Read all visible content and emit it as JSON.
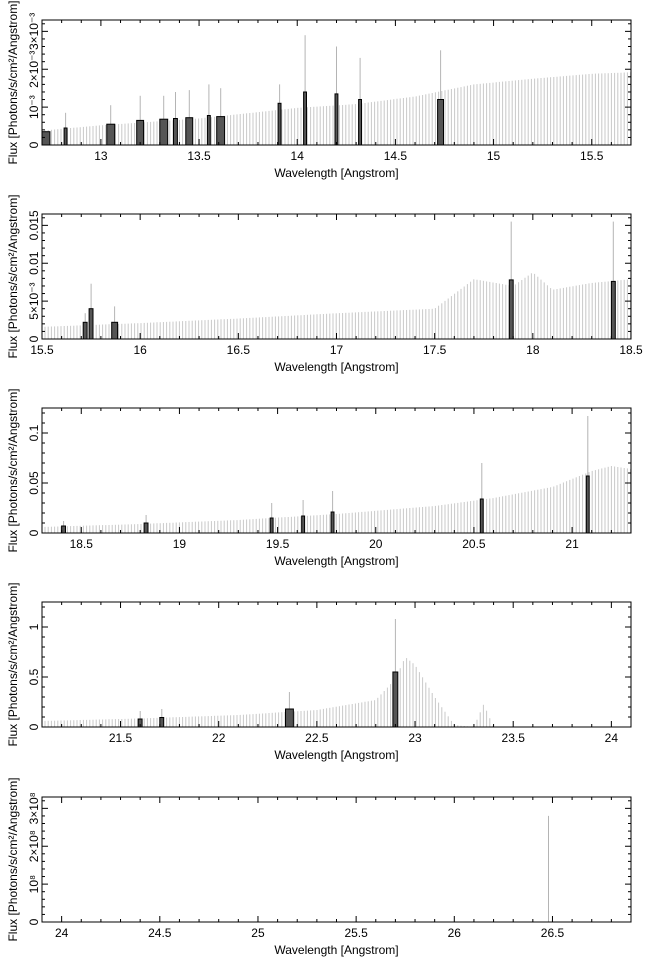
{
  "chart_data": [
    {
      "type": "bar",
      "xlabel": "Wavelength [Angstrom]",
      "ylabel": "Flux [Photons/s/cm²/Angstrom]",
      "xlim": [
        12.7,
        15.7
      ],
      "ylim": [
        0,
        0.0033
      ],
      "x_ticks": [
        {
          "v": 13,
          "label": "13"
        },
        {
          "v": 13.5,
          "label": "13.5"
        },
        {
          "v": 14,
          "label": "14"
        },
        {
          "v": 14.5,
          "label": "14.5"
        },
        {
          "v": 15,
          "label": "15"
        },
        {
          "v": 15.5,
          "label": "15.5"
        }
      ],
      "y_ticks": [
        {
          "v": 0,
          "label": "0"
        },
        {
          "v": 0.001,
          "label": "10⁻³"
        },
        {
          "v": 0.002,
          "label": "2×10⁻³"
        },
        {
          "v": 0.003,
          "label": "3×10⁻³"
        }
      ],
      "model": [
        [
          12.7,
          0.00038
        ],
        [
          13.0,
          0.00052
        ],
        [
          13.5,
          0.0007
        ],
        [
          14.0,
          0.00098
        ],
        [
          14.3,
          0.00108
        ],
        [
          14.6,
          0.00128
        ],
        [
          14.9,
          0.0016
        ],
        [
          15.2,
          0.00175
        ],
        [
          15.5,
          0.00188
        ],
        [
          15.7,
          0.00192
        ]
      ],
      "bars": [
        {
          "x": 12.72,
          "w": 0.04,
          "y": 0.00035,
          "err": 0.0
        },
        {
          "x": 12.82,
          "w": 0.015,
          "y": 0.00045,
          "err": 0.00085
        },
        {
          "x": 13.05,
          "w": 0.04,
          "y": 0.00055,
          "err": 0.00105
        },
        {
          "x": 13.2,
          "w": 0.035,
          "y": 0.00065,
          "err": 0.0013
        },
        {
          "x": 13.32,
          "w": 0.04,
          "y": 0.00068,
          "err": 0.0013
        },
        {
          "x": 13.38,
          "w": 0.02,
          "y": 0.0007,
          "err": 0.0014
        },
        {
          "x": 13.45,
          "w": 0.035,
          "y": 0.00072,
          "err": 0.00145
        },
        {
          "x": 13.55,
          "w": 0.015,
          "y": 0.00078,
          "err": 0.0016
        },
        {
          "x": 13.61,
          "w": 0.04,
          "y": 0.00075,
          "err": 0.0015
        },
        {
          "x": 13.91,
          "w": 0.015,
          "y": 0.0011,
          "err": 0.0016
        },
        {
          "x": 14.04,
          "w": 0.015,
          "y": 0.0014,
          "err": 0.0029
        },
        {
          "x": 14.2,
          "w": 0.015,
          "y": 0.00135,
          "err": 0.0026
        },
        {
          "x": 14.32,
          "w": 0.015,
          "y": 0.0012,
          "err": 0.0023
        },
        {
          "x": 14.73,
          "w": 0.03,
          "y": 0.0012,
          "err": 0.0025
        }
      ]
    },
    {
      "type": "bar",
      "xlabel": "Wavelength [Angstrom]",
      "ylabel": "Flux [Photons/s/cm²/Angstrom]",
      "xlim": [
        15.5,
        18.5
      ],
      "ylim": [
        0,
        0.0165
      ],
      "x_ticks": [
        {
          "v": 15.5,
          "label": "15.5"
        },
        {
          "v": 16,
          "label": "16"
        },
        {
          "v": 16.5,
          "label": "16.5"
        },
        {
          "v": 17,
          "label": "17"
        },
        {
          "v": 17.5,
          "label": "17.5"
        },
        {
          "v": 18,
          "label": "18"
        },
        {
          "v": 18.5,
          "label": "18.5"
        }
      ],
      "y_ticks": [
        {
          "v": 0,
          "label": "0"
        },
        {
          "v": 0.005,
          "label": "5×10⁻³"
        },
        {
          "v": 0.01,
          "label": "0.01"
        },
        {
          "v": 0.015,
          "label": "0.015"
        }
      ],
      "model": [
        [
          15.5,
          0.0016
        ],
        [
          16.0,
          0.0021
        ],
        [
          16.5,
          0.0027
        ],
        [
          17.0,
          0.0034
        ],
        [
          17.5,
          0.004
        ],
        [
          17.7,
          0.0079
        ],
        [
          17.9,
          0.007
        ],
        [
          18.0,
          0.0088
        ],
        [
          18.1,
          0.0065
        ],
        [
          18.3,
          0.0074
        ],
        [
          18.5,
          0.0079
        ]
      ],
      "bars": [
        {
          "x": 15.72,
          "w": 0.02,
          "y": 0.0022,
          "err": 0.0034
        },
        {
          "x": 15.75,
          "w": 0.02,
          "y": 0.004,
          "err": 0.0073
        },
        {
          "x": 15.87,
          "w": 0.03,
          "y": 0.0022,
          "err": 0.0043
        },
        {
          "x": 17.89,
          "w": 0.02,
          "y": 0.0078,
          "err": 0.0155
        },
        {
          "x": 18.41,
          "w": 0.02,
          "y": 0.0076,
          "err": 0.0155
        }
      ]
    },
    {
      "type": "bar",
      "xlabel": "Wavelength [Angstrom]",
      "ylabel": "Flux [Photons/s/cm²/Angstrom]",
      "xlim": [
        18.3,
        21.3
      ],
      "ylim": [
        0,
        0.125
      ],
      "x_ticks": [
        {
          "v": 18.5,
          "label": "18.5"
        },
        {
          "v": 19,
          "label": "19"
        },
        {
          "v": 19.5,
          "label": "19.5"
        },
        {
          "v": 20,
          "label": "20"
        },
        {
          "v": 20.5,
          "label": "20.5"
        },
        {
          "v": 21,
          "label": "21"
        }
      ],
      "y_ticks": [
        {
          "v": 0,
          "label": "0"
        },
        {
          "v": 0.05,
          "label": "0.05"
        },
        {
          "v": 0.1,
          "label": "0.1"
        }
      ],
      "model": [
        [
          18.3,
          0.006
        ],
        [
          18.8,
          0.009
        ],
        [
          19.3,
          0.013
        ],
        [
          19.8,
          0.019
        ],
        [
          20.3,
          0.027
        ],
        [
          20.6,
          0.035
        ],
        [
          20.9,
          0.046
        ],
        [
          21.1,
          0.062
        ],
        [
          21.2,
          0.067
        ],
        [
          21.3,
          0.064
        ]
      ],
      "bars": [
        {
          "x": 18.41,
          "w": 0.02,
          "y": 0.007,
          "err": 0.012
        },
        {
          "x": 18.83,
          "w": 0.02,
          "y": 0.01,
          "err": 0.018
        },
        {
          "x": 19.47,
          "w": 0.015,
          "y": 0.015,
          "err": 0.03
        },
        {
          "x": 19.63,
          "w": 0.015,
          "y": 0.017,
          "err": 0.033
        },
        {
          "x": 19.78,
          "w": 0.015,
          "y": 0.021,
          "err": 0.042
        },
        {
          "x": 20.54,
          "w": 0.015,
          "y": 0.034,
          "err": 0.07
        },
        {
          "x": 21.08,
          "w": 0.015,
          "y": 0.057,
          "err": 0.117
        }
      ]
    },
    {
      "type": "bar",
      "xlabel": "Wavelength [Angstrom]",
      "ylabel": "Flux [Photons/s/cm²/Angstrom]",
      "xlim": [
        21.1,
        24.1
      ],
      "ylim": [
        0,
        1.25
      ],
      "x_ticks": [
        {
          "v": 21.5,
          "label": "21.5"
        },
        {
          "v": 22,
          "label": "22"
        },
        {
          "v": 22.5,
          "label": "22.5"
        },
        {
          "v": 23,
          "label": "23"
        },
        {
          "v": 23.5,
          "label": "23.5"
        },
        {
          "v": 24,
          "label": "24"
        }
      ],
      "y_ticks": [
        {
          "v": 0,
          "label": "0"
        },
        {
          "v": 0.5,
          "label": "0.5"
        },
        {
          "v": 1,
          "label": "1"
        }
      ],
      "model": [
        [
          21.1,
          0.06
        ],
        [
          21.6,
          0.085
        ],
        [
          22.1,
          0.12
        ],
        [
          22.5,
          0.17
        ],
        [
          22.8,
          0.27
        ],
        [
          22.9,
          0.48
        ],
        [
          22.95,
          0.7
        ],
        [
          23.0,
          0.62
        ],
        [
          23.1,
          0.3
        ],
        [
          23.2,
          0.02
        ],
        [
          23.3,
          0.0
        ],
        [
          23.35,
          0.23
        ],
        [
          23.4,
          0.0
        ],
        [
          24.1,
          0.0
        ]
      ],
      "bars": [
        {
          "x": 21.6,
          "w": 0.02,
          "y": 0.08,
          "err": 0.16
        },
        {
          "x": 21.71,
          "w": 0.02,
          "y": 0.095,
          "err": 0.18
        },
        {
          "x": 22.36,
          "w": 0.04,
          "y": 0.18,
          "err": 0.35
        },
        {
          "x": 22.9,
          "w": 0.025,
          "y": 0.55,
          "err": 1.08
        }
      ]
    },
    {
      "type": "bar",
      "xlabel": "Wavelength [Angstrom]",
      "ylabel": "Flux [Photons/s/cm²/Angstrom]",
      "xlim": [
        23.9,
        26.9
      ],
      "ylim": [
        0,
        330000000
      ],
      "x_ticks": [
        {
          "v": 24,
          "label": "24"
        },
        {
          "v": 24.5,
          "label": "24.5"
        },
        {
          "v": 25,
          "label": "25"
        },
        {
          "v": 25.5,
          "label": "25.5"
        },
        {
          "v": 26,
          "label": "26"
        },
        {
          "v": 26.5,
          "label": "26.5"
        }
      ],
      "y_ticks": [
        {
          "v": 0,
          "label": "0"
        },
        {
          "v": 100000000,
          "label": "10⁸"
        },
        {
          "v": 200000000,
          "label": "2×10⁸"
        },
        {
          "v": 300000000,
          "label": "3×10⁸"
        }
      ],
      "model": [
        [
          23.9,
          0
        ],
        [
          26.9,
          0
        ]
      ],
      "bars": [
        {
          "x": 26.48,
          "w": 0.006,
          "y": 0,
          "err": 280000000
        }
      ]
    }
  ]
}
